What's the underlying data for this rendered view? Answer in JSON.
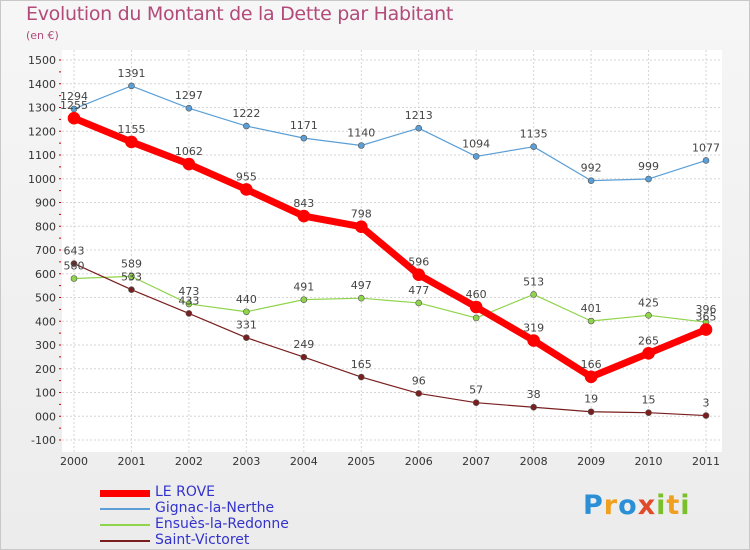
{
  "header": {
    "title": "Evolution du Montant de la Dette par Habitant",
    "unit": "(en €)"
  },
  "logo": {
    "letters": [
      {
        "ch": "P",
        "color": "#2a8fd6"
      },
      {
        "ch": "r",
        "color": "#f0a020"
      },
      {
        "ch": "o",
        "color": "#2a8fd6"
      },
      {
        "ch": "x",
        "color": "#e24b2a"
      },
      {
        "ch": "i",
        "color": "#7bbf2a"
      },
      {
        "ch": "t",
        "color": "#f0a020"
      },
      {
        "ch": "i",
        "color": "#7bbf2a"
      }
    ]
  },
  "chart_data": {
    "type": "line",
    "title": "Evolution du Montant de la Dette par Habitant",
    "subtitle": "(en €)",
    "x": [
      "2000",
      "2001",
      "2002",
      "2003",
      "2004",
      "2005",
      "2006",
      "2007",
      "2008",
      "2009",
      "2010",
      "2011"
    ],
    "ylim": [
      -100,
      1500
    ],
    "yticks": [
      "-100",
      "000",
      "100",
      "200",
      "300",
      "400",
      "500",
      "600",
      "700",
      "800",
      "900",
      "1000",
      "1100",
      "1200",
      "1300",
      "1400",
      "1500"
    ],
    "ytick_values": [
      -100,
      0,
      100,
      200,
      300,
      400,
      500,
      600,
      700,
      800,
      900,
      1000,
      1100,
      1200,
      1300,
      1400,
      1500
    ],
    "grid": true,
    "legend_position": "bottom-left",
    "series": [
      {
        "name": "Gignac-la-Nerthe",
        "color": "#5b9fd6",
        "width": 1.2,
        "marker": 3,
        "values": [
          1294,
          1391,
          1297,
          1222,
          1171,
          1140,
          1213,
          1094,
          1135,
          992,
          999,
          1077
        ]
      },
      {
        "name": "Ensuès-la-Redonne",
        "color": "#8fd44a",
        "width": 1.2,
        "marker": 3,
        "values": [
          580,
          589,
          473,
          440,
          491,
          497,
          477,
          414,
          513,
          401,
          425,
          396
        ]
      },
      {
        "name": "Saint-Victoret",
        "color": "#7a1f1f",
        "width": 1.2,
        "marker": 3,
        "values": [
          643,
          533,
          433,
          331,
          249,
          165,
          96,
          57,
          38,
          19,
          15,
          3
        ]
      },
      {
        "name": "LE ROVE",
        "color": "#ff0000",
        "width": 7,
        "marker": 6,
        "values": [
          1255,
          1155,
          1062,
          955,
          843,
          798,
          596,
          460,
          319,
          166,
          265,
          365
        ]
      }
    ],
    "point_labels": {
      "Gignac-la-Nerthe": [
        "1294",
        "1391",
        "1297",
        "1222",
        "1171",
        "1140",
        "1213",
        "1094",
        "1135",
        "992",
        "999",
        "1077"
      ],
      "Ensuès-la-Redonne": [
        "580",
        "589",
        "473",
        "440",
        "491",
        "497",
        "477",
        "",
        "513",
        "401",
        "425",
        "396"
      ],
      "Saint-Victoret": [
        "643",
        "533",
        "433",
        "331",
        "249",
        "165",
        "96",
        "57",
        "38",
        "19",
        "15",
        "3"
      ],
      "LE ROVE": [
        "1255",
        "1155",
        "1062",
        "955",
        "843",
        "798",
        "596",
        "460",
        "319",
        "166",
        "265",
        "365"
      ]
    },
    "legend_order": [
      "LE ROVE",
      "Gignac-la-Nerthe",
      "Ensuès-la-Redonne",
      "Saint-Victoret"
    ]
  }
}
